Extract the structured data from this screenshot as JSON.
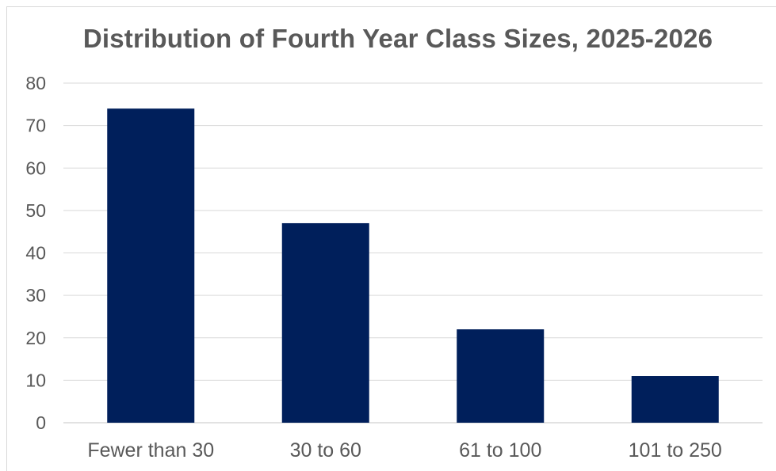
{
  "chart_data": {
    "type": "bar",
    "title": "Distribution of Fourth Year Class Sizes, 2025-2026",
    "categories": [
      "Fewer than 30",
      "30 to 60",
      "61 to 100",
      "101 to 250"
    ],
    "values": [
      74,
      47,
      22,
      11
    ],
    "y_ticks": [
      "0",
      "10",
      "20",
      "30",
      "40",
      "50",
      "60",
      "70",
      "80"
    ],
    "ylim": [
      0,
      80
    ],
    "grid": true,
    "legend": "none",
    "bar_color": "#001f5b",
    "grid_color": "#d9d9d9",
    "text_color": "#595959"
  }
}
